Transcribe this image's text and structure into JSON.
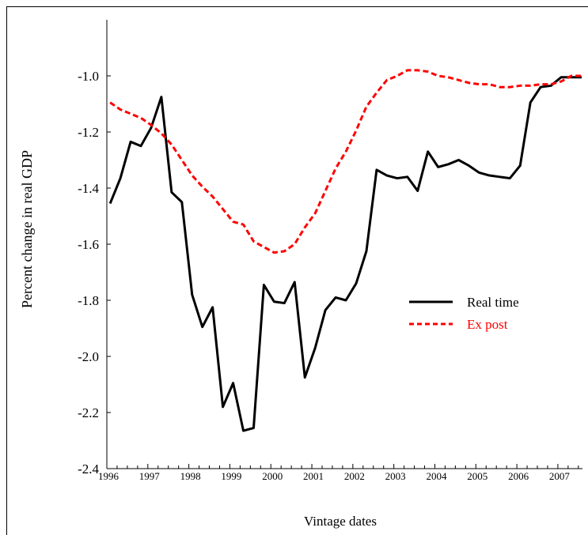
{
  "chart_data": {
    "type": "line",
    "title": "",
    "xlabel": "Vintage dates",
    "ylabel": "Percent change in real GDP",
    "xlim": [
      1996,
      2007.6
    ],
    "ylim": [
      -2.4,
      -0.8
    ],
    "yticks": [
      -2.4,
      -2.2,
      -2.0,
      -1.8,
      -1.6,
      -1.4,
      -1.2,
      -1.0
    ],
    "ytick_labels": [
      "-2.4",
      "-2.2",
      "-2.0",
      "-1.8",
      "-1.6",
      "-1.4",
      "-1.2",
      "-1.0"
    ],
    "xticks": [
      1996,
      1997,
      1998,
      1999,
      2000,
      2001,
      2002,
      2003,
      2004,
      2005,
      2006,
      2007
    ],
    "xtick_labels": [
      "1996",
      "1997",
      "1998",
      "1999",
      "2000",
      "2001",
      "2002",
      "2003",
      "2004",
      "2005",
      "2006",
      "2007"
    ],
    "grid": false,
    "legend_position": "center-right",
    "series": [
      {
        "name": "Real time",
        "color": "#000000",
        "style": "solid",
        "x": [
          1996.08,
          1996.33,
          1996.58,
          1996.83,
          1997.08,
          1997.33,
          1997.58,
          1997.83,
          1998.08,
          1998.33,
          1998.58,
          1998.83,
          1999.08,
          1999.33,
          1999.58,
          1999.83,
          2000.08,
          2000.33,
          2000.58,
          2000.83,
          2001.08,
          2001.33,
          2001.58,
          2001.83,
          2002.08,
          2002.33,
          2002.58,
          2002.83,
          2003.08,
          2003.33,
          2003.58,
          2003.83,
          2004.08,
          2004.33,
          2004.58,
          2004.83,
          2005.08,
          2005.33,
          2005.58,
          2005.83,
          2006.08,
          2006.33,
          2006.58,
          2006.83,
          2007.08,
          2007.33,
          2007.58
        ],
        "values": [
          -1.455,
          -1.365,
          -1.235,
          -1.25,
          -1.185,
          -1.075,
          -1.415,
          -1.45,
          -1.78,
          -1.895,
          -1.825,
          -2.18,
          -2.095,
          -2.265,
          -2.255,
          -1.745,
          -1.805,
          -1.81,
          -1.735,
          -2.075,
          -1.97,
          -1.835,
          -1.79,
          -1.8,
          -1.74,
          -1.625,
          -1.335,
          -1.355,
          -1.365,
          -1.36,
          -1.41,
          -1.27,
          -1.325,
          -1.315,
          -1.3,
          -1.32,
          -1.345,
          -1.355,
          -1.36,
          -1.365,
          -1.32,
          -1.095,
          -1.04,
          -1.035,
          -1.005,
          -1.005,
          -1.005
        ]
      },
      {
        "name": "Ex post",
        "color": "#ff0000",
        "style": "dashed",
        "x": [
          1996.08,
          1996.33,
          1996.58,
          1996.83,
          1997.08,
          1997.33,
          1997.58,
          1997.83,
          1998.08,
          1998.33,
          1998.58,
          1998.83,
          1999.08,
          1999.33,
          1999.58,
          1999.83,
          2000.08,
          2000.33,
          2000.58,
          2000.83,
          2001.08,
          2001.33,
          2001.58,
          2001.83,
          2002.08,
          2002.33,
          2002.58,
          2002.83,
          2003.08,
          2003.33,
          2003.58,
          2003.83,
          2004.08,
          2004.33,
          2004.58,
          2004.83,
          2005.08,
          2005.33,
          2005.58,
          2005.83,
          2006.08,
          2006.33,
          2006.58,
          2006.83,
          2007.08,
          2007.33,
          2007.58
        ],
        "values": [
          -1.095,
          -1.12,
          -1.135,
          -1.15,
          -1.175,
          -1.205,
          -1.245,
          -1.3,
          -1.355,
          -1.395,
          -1.43,
          -1.475,
          -1.52,
          -1.53,
          -1.59,
          -1.61,
          -1.63,
          -1.625,
          -1.6,
          -1.54,
          -1.49,
          -1.41,
          -1.33,
          -1.27,
          -1.195,
          -1.11,
          -1.06,
          -1.015,
          -1.0,
          -0.98,
          -0.98,
          -0.985,
          -1.0,
          -1.005,
          -1.015,
          -1.025,
          -1.03,
          -1.03,
          -1.04,
          -1.04,
          -1.035,
          -1.035,
          -1.03,
          -1.03,
          -1.02,
          -1.0,
          -1.0
        ]
      }
    ]
  }
}
